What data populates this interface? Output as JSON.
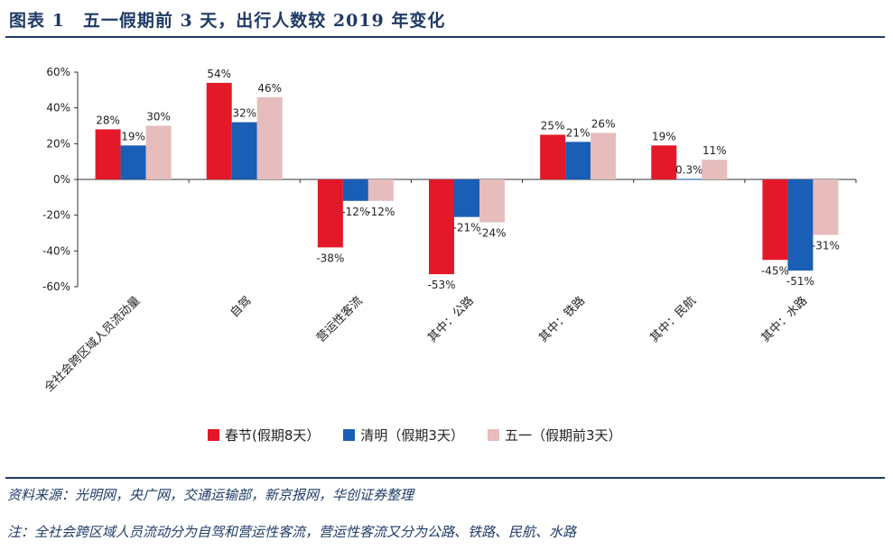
{
  "header": {
    "title": "图表 1　五一假期前 3 天，出行人数较 2019 年变化"
  },
  "footer": {
    "source": "资料来源：光明网，央广网，交通运输部，新京报网，华创证券整理",
    "note": "注：全社会跨区域人员流动分为自驾和营运性客流，营运性客流又分为公路、铁路、民航、水路"
  },
  "chart_data": {
    "type": "bar",
    "categories": [
      "全社会跨区域人员流动量",
      "自驾",
      "营运性客流",
      "其中：公路",
      "其中：铁路",
      "其中：民航",
      "其中：水路"
    ],
    "series": [
      {
        "name": "春节(假期8天）",
        "color": "#e3192a",
        "values": [
          28,
          54,
          -38,
          -53,
          25,
          19,
          -45
        ],
        "labels": [
          "28%",
          "54%",
          "-38%",
          "-53%",
          "25%",
          "19%",
          "-45%"
        ]
      },
      {
        "name": "清明（假期3天）",
        "color": "#1b5eb5",
        "values": [
          19,
          32,
          -12,
          -21,
          21,
          0.3,
          -51
        ],
        "labels": [
          "19%",
          "32%",
          "-12%",
          "-21%",
          "21%",
          "0.3%",
          "-51%"
        ]
      },
      {
        "name": "五一（假期前3天）",
        "color": "#e6bcbd",
        "values": [
          30,
          46,
          -12,
          -24,
          26,
          11,
          -31
        ],
        "labels": [
          "30%",
          "46%",
          "-12%",
          "-24%",
          "26%",
          "11%",
          "-31%"
        ]
      }
    ],
    "yticks": [
      "60%",
      "40%",
      "20%",
      "0%",
      "-20%",
      "-40%",
      "-60%"
    ],
    "ylim": [
      -60,
      60
    ],
    "grid": false,
    "legend": "bottom"
  }
}
